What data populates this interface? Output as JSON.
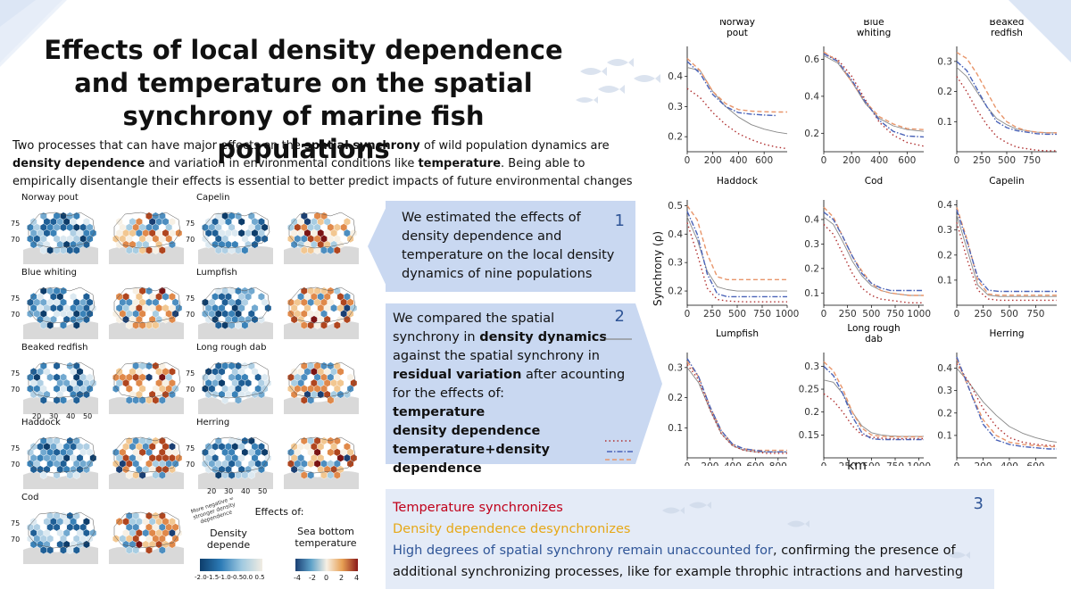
{
  "title": "Effects of local density dependence and temperature on the spatial synchrony of marine fish populations",
  "intro": {
    "p1": "Two processes that can have major effects on the ",
    "b1": "spatial synchrony",
    "p2": " of wild population dynamics are ",
    "b2": "density dependence",
    "p3": " and variation in environmental conditions like ",
    "b3": "temperature",
    "p4": ". Being able to empirically disentangle their effects is essential to better predict impacts of future environmental changes"
  },
  "maps": {
    "species": [
      "Norway pout",
      "Blue whiting",
      "Beaked redfish",
      "Haddock",
      "Cod",
      "Capelin",
      "Lumpfish",
      "Long rough dab",
      "Herring"
    ],
    "lat_ticks": [
      "75",
      "70"
    ],
    "lon_ticks": [
      "20",
      "30",
      "40",
      "50"
    ],
    "note": "More negative = stronger density dependence",
    "effects_label": "Effects of:",
    "legend_dd": {
      "title": "Density depende",
      "ticks": [
        "-2.0",
        "-1.5",
        "-1.0",
        "-0.5",
        "0.0",
        "0.5"
      ]
    },
    "legend_temp": {
      "title": "Sea bottom temperature",
      "ticks": [
        "-4",
        "-2",
        "0",
        "2",
        "4"
      ]
    }
  },
  "box1": {
    "number": "1",
    "text": "We estimated the effects of density dependence and temperature on the local density dynamics of nine populations"
  },
  "box2": {
    "number": "2",
    "l1": "We compared the spatial",
    "l2a": "synchrony in ",
    "l2b": "density dynamics",
    "l3": "against the spatial synchrony in",
    "l4a": "residual variation",
    "l4b": " after acounting",
    "l5": "for the effects of:",
    "items": [
      "temperature",
      "density dependence",
      "temperature+density dependence"
    ]
  },
  "box3": {
    "number": "3",
    "line1": "Temperature synchronizes",
    "line2": "Density dependence desynchronizes",
    "line3a": "High degrees of spatial synchrony remain unaccounted for",
    "line3b": ", confirming the presence of additional synchronizing processes, like for example throphic intractions and harvesting"
  },
  "colors": {
    "density": "#888888",
    "temperature": "#b03030",
    "dd": "#e8956a",
    "both": "#4a63b8",
    "accent": "#2f5597",
    "box": "#c9d8f1"
  },
  "chart_ylabel": "Synchrony (ρ)",
  "chart_xlabel": "km",
  "chart_data": [
    {
      "type": "line",
      "title": "Norway pout",
      "xlim": [
        0,
        780
      ],
      "ylim": [
        0.15,
        0.5
      ],
      "xticks": [
        0,
        200,
        400,
        600
      ],
      "yticks": [
        0.2,
        0.3,
        0.4
      ],
      "x": [
        0,
        100,
        200,
        300,
        400,
        500,
        600,
        700,
        780
      ],
      "series": [
        {
          "key": "density",
          "values": [
            0.43,
            0.42,
            0.35,
            0.3,
            0.265,
            0.24,
            0.225,
            0.215,
            0.21
          ]
        },
        {
          "key": "temperature",
          "values": [
            0.36,
            0.33,
            0.28,
            0.24,
            0.21,
            0.19,
            0.175,
            0.165,
            0.16
          ]
        },
        {
          "key": "dd",
          "values": [
            0.46,
            0.42,
            0.35,
            0.31,
            0.29,
            0.285,
            0.283,
            0.282,
            0.282
          ]
        },
        {
          "key": "both",
          "values": [
            0.45,
            0.41,
            0.34,
            0.3,
            0.28,
            0.275,
            0.272,
            0.27,
            null
          ]
        }
      ]
    },
    {
      "type": "line",
      "title": "Blue whiting",
      "xlim": [
        0,
        720
      ],
      "ylim": [
        0.1,
        0.67
      ],
      "xticks": [
        0,
        200,
        400,
        600
      ],
      "yticks": [
        0.2,
        0.4,
        0.6
      ],
      "x": [
        0,
        100,
        200,
        300,
        400,
        500,
        600,
        720
      ],
      "series": [
        {
          "key": "density",
          "values": [
            0.62,
            0.58,
            0.48,
            0.36,
            0.28,
            0.24,
            0.22,
            0.21
          ]
        },
        {
          "key": "temperature",
          "values": [
            0.63,
            0.6,
            0.51,
            0.38,
            0.26,
            0.19,
            0.15,
            0.13
          ]
        },
        {
          "key": "dd",
          "values": [
            0.64,
            0.59,
            0.48,
            0.37,
            0.29,
            0.25,
            0.225,
            0.22
          ]
        },
        {
          "key": "both",
          "values": [
            0.63,
            0.59,
            0.49,
            0.37,
            0.27,
            0.21,
            0.185,
            0.18
          ]
        }
      ]
    },
    {
      "type": "line",
      "title": "Beaked redfish",
      "xlim": [
        0,
        1000
      ],
      "ylim": [
        0.0,
        0.35
      ],
      "xticks": [
        0,
        250,
        500,
        750
      ],
      "yticks": [
        0.1,
        0.2,
        0.3
      ],
      "x": [
        0,
        100,
        200,
        300,
        400,
        500,
        600,
        700,
        800,
        900,
        1000
      ],
      "series": [
        {
          "key": "density",
          "values": [
            0.28,
            0.25,
            0.2,
            0.15,
            0.11,
            0.09,
            0.075,
            0.07,
            0.065,
            0.063,
            0.063
          ]
        },
        {
          "key": "temperature",
          "values": [
            0.25,
            0.2,
            0.14,
            0.09,
            0.05,
            0.03,
            0.015,
            0.01,
            0.005,
            0.003,
            0.003
          ]
        },
        {
          "key": "dd",
          "values": [
            0.33,
            0.31,
            0.26,
            0.2,
            0.14,
            0.1,
            0.08,
            0.07,
            0.065,
            0.063,
            0.063
          ]
        },
        {
          "key": "both",
          "values": [
            0.3,
            0.27,
            0.21,
            0.15,
            0.1,
            0.08,
            0.07,
            0.065,
            0.06,
            0.058,
            0.058
          ]
        }
      ]
    },
    {
      "type": "line",
      "title": "Haddock",
      "xlim": [
        0,
        1000
      ],
      "ylim": [
        0.15,
        0.52
      ],
      "xticks": [
        0,
        250,
        500,
        750,
        1000
      ],
      "yticks": [
        0.2,
        0.3,
        0.4,
        0.5
      ],
      "x": [
        0,
        100,
        200,
        300,
        400,
        500,
        600,
        700,
        800,
        900,
        1000
      ],
      "series": [
        {
          "key": "density",
          "values": [
            0.46,
            0.38,
            0.27,
            0.215,
            0.205,
            0.2,
            0.2,
            0.2,
            0.2,
            0.2,
            0.2
          ]
        },
        {
          "key": "temperature",
          "values": [
            0.44,
            0.33,
            0.21,
            0.17,
            0.165,
            0.163,
            0.162,
            0.162,
            0.162,
            0.162,
            0.162
          ]
        },
        {
          "key": "dd",
          "values": [
            0.5,
            0.45,
            0.33,
            0.25,
            0.24,
            0.24,
            0.24,
            0.24,
            0.24,
            0.24,
            0.24
          ]
        },
        {
          "key": "both",
          "values": [
            0.48,
            0.4,
            0.26,
            0.19,
            0.18,
            0.18,
            0.18,
            0.18,
            0.18,
            0.18,
            0.18
          ]
        }
      ]
    },
    {
      "type": "line",
      "title": "Cod",
      "xlim": [
        0,
        1050
      ],
      "ylim": [
        0.05,
        0.48
      ],
      "xticks": [
        0,
        250,
        500,
        750,
        1000
      ],
      "yticks": [
        0.1,
        0.2,
        0.3,
        0.4
      ],
      "x": [
        0,
        100,
        200,
        300,
        400,
        500,
        600,
        700,
        800,
        900,
        1000,
        1050
      ],
      "series": [
        {
          "key": "density",
          "values": [
            0.41,
            0.38,
            0.31,
            0.23,
            0.17,
            0.13,
            0.11,
            0.1,
            0.095,
            0.09,
            0.09,
            0.09
          ]
        },
        {
          "key": "temperature",
          "values": [
            0.38,
            0.34,
            0.26,
            0.18,
            0.12,
            0.09,
            0.075,
            0.07,
            0.065,
            0.06,
            0.06,
            0.06
          ]
        },
        {
          "key": "dd",
          "values": [
            0.45,
            0.41,
            0.33,
            0.25,
            0.19,
            0.14,
            0.11,
            0.1,
            0.095,
            0.09,
            0.09,
            0.09
          ]
        },
        {
          "key": "both",
          "values": [
            0.43,
            0.4,
            0.33,
            0.25,
            0.18,
            0.14,
            0.12,
            0.11,
            0.11,
            0.11,
            0.11,
            0.11
          ]
        }
      ]
    },
    {
      "type": "line",
      "title": "Capelin",
      "xlim": [
        0,
        950
      ],
      "ylim": [
        0.0,
        0.42
      ],
      "xticks": [
        0,
        250,
        500,
        750
      ],
      "yticks": [
        0.1,
        0.2,
        0.3,
        0.4
      ],
      "x": [
        0,
        100,
        200,
        300,
        400,
        500,
        600,
        700,
        800,
        950
      ],
      "series": [
        {
          "key": "density",
          "values": [
            0.36,
            0.22,
            0.08,
            0.04,
            0.035,
            0.035,
            0.035,
            0.035,
            0.035,
            0.035
          ]
        },
        {
          "key": "temperature",
          "values": [
            0.33,
            0.18,
            0.06,
            0.025,
            0.02,
            0.02,
            0.02,
            0.02,
            0.02,
            0.02
          ]
        },
        {
          "key": "dd",
          "values": [
            0.39,
            0.26,
            0.1,
            0.045,
            0.04,
            0.04,
            0.04,
            0.04,
            0.04,
            0.04
          ]
        },
        {
          "key": "both",
          "values": [
            0.38,
            0.25,
            0.11,
            0.06,
            0.055,
            0.055,
            0.055,
            0.055,
            0.055,
            0.055
          ]
        }
      ]
    },
    {
      "type": "line",
      "title": "Lumpfish",
      "xlim": [
        0,
        880
      ],
      "ylim": [
        0.0,
        0.35
      ],
      "xticks": [
        0,
        200,
        400,
        600,
        800
      ],
      "yticks": [
        0.1,
        0.2,
        0.3
      ],
      "x": [
        0,
        100,
        200,
        300,
        400,
        500,
        600,
        700,
        800,
        880
      ],
      "series": [
        {
          "key": "density",
          "values": [
            0.3,
            0.25,
            0.16,
            0.08,
            0.04,
            0.025,
            0.02,
            0.02,
            0.02,
            0.02
          ]
        },
        {
          "key": "temperature",
          "values": [
            0.31,
            0.26,
            0.16,
            0.08,
            0.04,
            0.025,
            0.02,
            0.015,
            0.015,
            0.015
          ]
        },
        {
          "key": "dd",
          "values": [
            0.32,
            0.27,
            0.17,
            0.09,
            0.045,
            0.03,
            0.025,
            0.025,
            0.025,
            0.025
          ]
        },
        {
          "key": "both",
          "values": [
            0.33,
            0.27,
            0.17,
            0.09,
            0.045,
            0.03,
            0.025,
            0.02,
            0.02,
            0.02
          ]
        }
      ]
    },
    {
      "type": "line",
      "title": "Long rough dab",
      "xlim": [
        0,
        1050
      ],
      "ylim": [
        0.1,
        0.33
      ],
      "xticks": [
        0,
        250,
        500,
        750,
        1000
      ],
      "yticks": [
        0.15,
        0.2,
        0.25,
        0.3
      ],
      "x": [
        0,
        100,
        200,
        300,
        400,
        500,
        600,
        700,
        800,
        900,
        1000,
        1050
      ],
      "series": [
        {
          "key": "density",
          "values": [
            0.27,
            0.265,
            0.24,
            0.2,
            0.17,
            0.155,
            0.15,
            0.148,
            0.147,
            0.147,
            0.147,
            0.147
          ]
        },
        {
          "key": "temperature",
          "values": [
            0.24,
            0.225,
            0.2,
            0.17,
            0.15,
            0.145,
            0.143,
            0.142,
            0.142,
            0.142,
            0.142,
            0.142
          ]
        },
        {
          "key": "dd",
          "values": [
            0.31,
            0.29,
            0.25,
            0.2,
            0.165,
            0.15,
            0.147,
            0.146,
            0.146,
            0.146,
            0.146,
            0.146
          ]
        },
        {
          "key": "both",
          "values": [
            0.3,
            0.28,
            0.24,
            0.19,
            0.155,
            0.142,
            0.14,
            0.14,
            0.14,
            0.14,
            0.14,
            0.14
          ]
        }
      ]
    },
    {
      "type": "line",
      "title": "Herring",
      "xlim": [
        0,
        760
      ],
      "ylim": [
        0.0,
        0.47
      ],
      "xticks": [
        0,
        200,
        400,
        600
      ],
      "yticks": [
        0.1,
        0.2,
        0.3,
        0.4
      ],
      "x": [
        0,
        100,
        200,
        300,
        400,
        500,
        600,
        700,
        760
      ],
      "series": [
        {
          "key": "density",
          "values": [
            0.4,
            0.33,
            0.25,
            0.19,
            0.14,
            0.11,
            0.09,
            0.075,
            0.07
          ]
        },
        {
          "key": "temperature",
          "values": [
            0.42,
            0.33,
            0.22,
            0.14,
            0.09,
            0.07,
            0.06,
            0.055,
            0.055
          ]
        },
        {
          "key": "dd",
          "values": [
            0.44,
            0.3,
            0.17,
            0.1,
            0.07,
            0.06,
            0.055,
            0.05,
            0.05
          ]
        },
        {
          "key": "both",
          "values": [
            0.45,
            0.3,
            0.15,
            0.08,
            0.06,
            0.05,
            0.045,
            0.04,
            0.04
          ]
        }
      ]
    }
  ]
}
